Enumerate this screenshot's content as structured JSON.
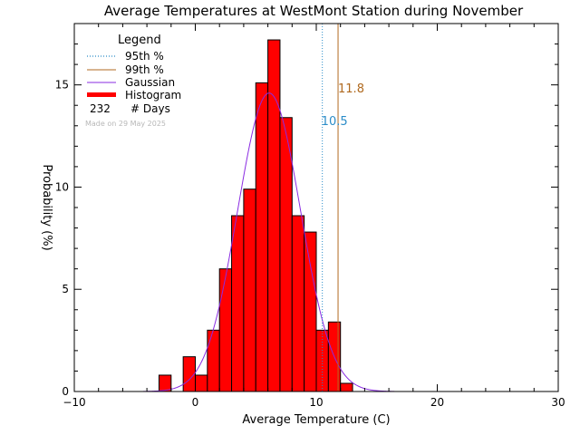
{
  "chart_data": {
    "type": "bar",
    "title": "Average Temperatures at WestMont Station during November",
    "xlabel": "Average Temperature (C)",
    "ylabel": "Probability  (%)",
    "xlim": [
      -10,
      30
    ],
    "ylim": [
      0,
      18
    ],
    "x_ticks": [
      -10,
      0,
      10,
      20,
      30
    ],
    "y_ticks": [
      0,
      5,
      10,
      15
    ],
    "bin_width": 1,
    "bins": [
      {
        "x0": -3,
        "value": 0.8
      },
      {
        "x0": -1,
        "value": 1.7
      },
      {
        "x0": 0,
        "value": 0.8
      },
      {
        "x0": 1,
        "value": 3.0
      },
      {
        "x0": 2,
        "value": 6.0
      },
      {
        "x0": 3,
        "value": 8.6
      },
      {
        "x0": 4,
        "value": 9.9
      },
      {
        "x0": 5,
        "value": 15.1
      },
      {
        "x0": 6,
        "value": 17.2
      },
      {
        "x0": 7,
        "value": 13.4
      },
      {
        "x0": 8,
        "value": 8.6
      },
      {
        "x0": 9,
        "value": 7.8
      },
      {
        "x0": 10,
        "value": 3.0
      },
      {
        "x0": 11,
        "value": 3.4
      },
      {
        "x0": 12,
        "value": 0.4
      }
    ],
    "gaussian": {
      "mean": 6.1,
      "peak": 14.6,
      "sigma": 2.6,
      "color": "#8a2be2"
    },
    "p95": {
      "value": 10.5,
      "label": "10.5",
      "color": "#2a8cc8"
    },
    "p99": {
      "value": 11.8,
      "label": "11.8",
      "color": "#b06a20"
    },
    "histogram_color": "#ff0000",
    "legend": {
      "title": "Legend",
      "placement": "top-left",
      "items": [
        "95th %",
        "99th %",
        "Gaussian",
        "Histogram"
      ],
      "days_count": "232",
      "days_label": "# Days"
    },
    "footnote": "Made on 29 May 2025"
  }
}
